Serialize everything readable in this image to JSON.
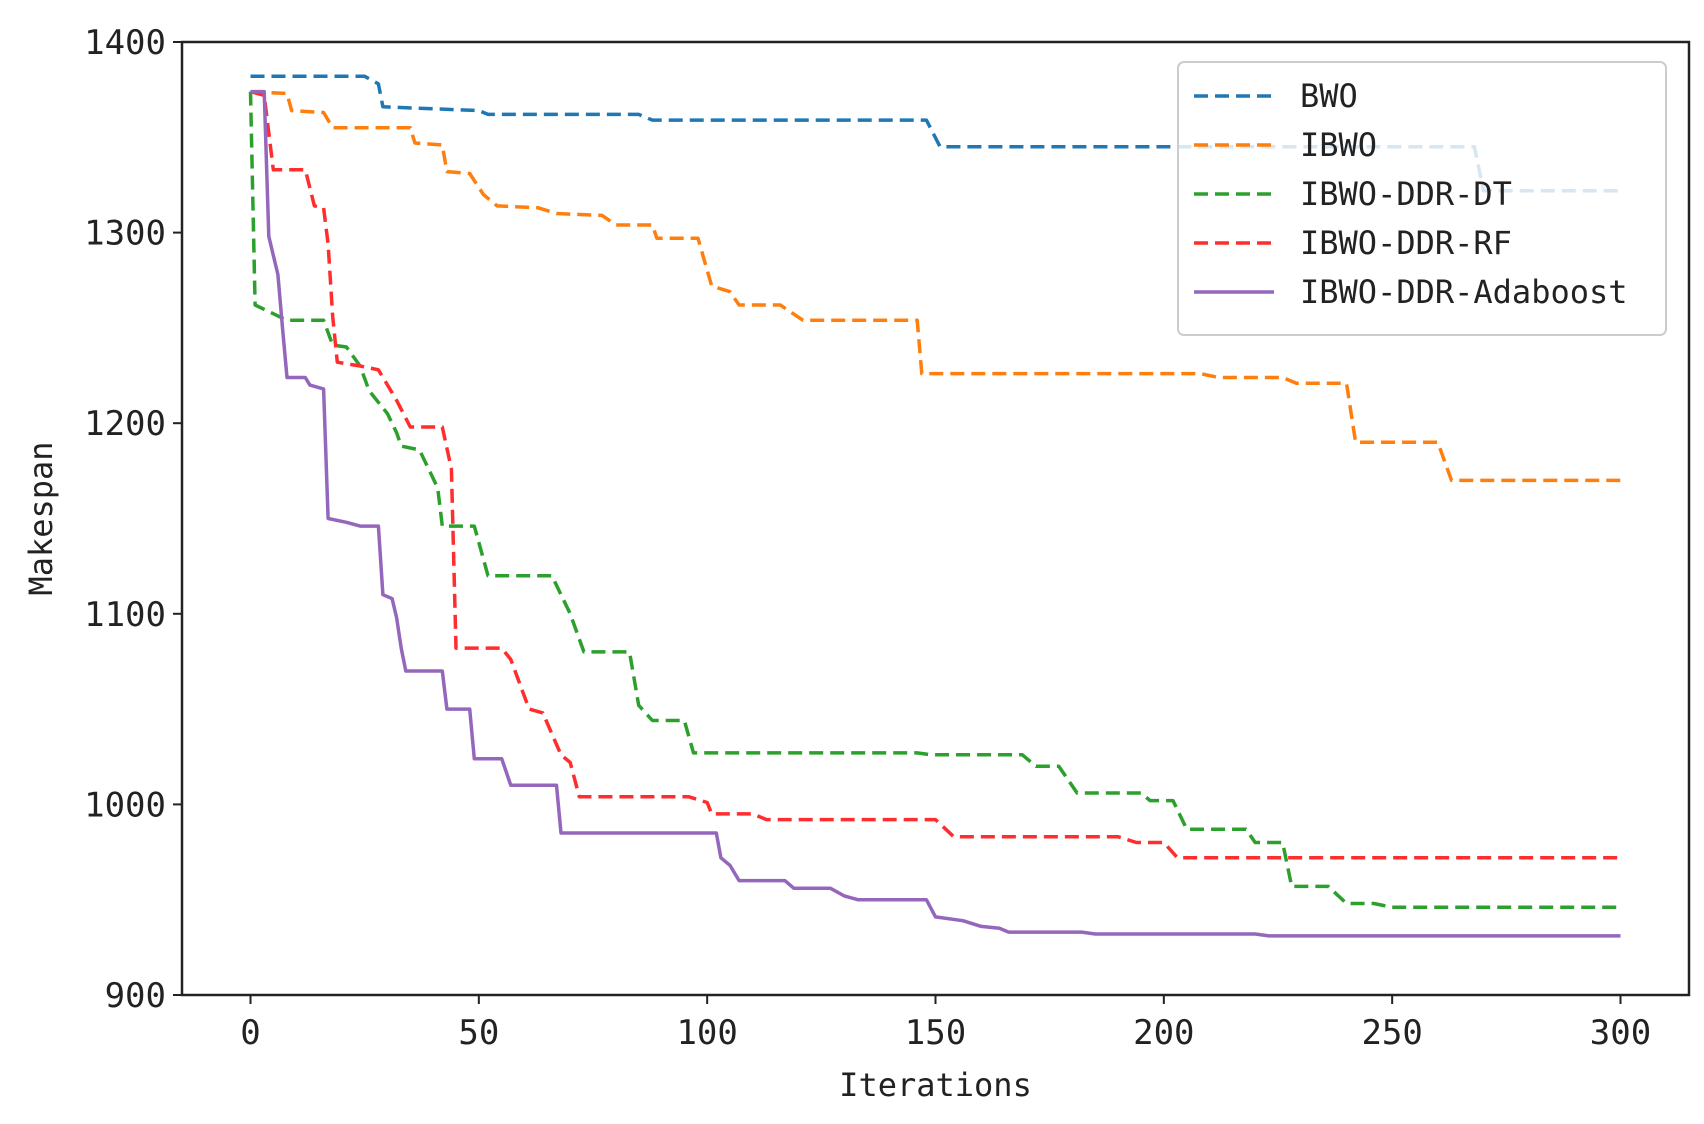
{
  "chart_data": {
    "type": "line",
    "title": "",
    "xlabel": "Iterations",
    "ylabel": "Makespan",
    "xlim": [
      -15,
      315
    ],
    "ylim": [
      900,
      1400
    ],
    "xticks": [
      0,
      50,
      100,
      150,
      200,
      250,
      300
    ],
    "yticks": [
      900,
      1000,
      1100,
      1200,
      1300,
      1400
    ],
    "grid": false,
    "legend_position": "top-right",
    "series": [
      {
        "name": "BWO",
        "color": "#1f77b4",
        "dash": "dashed",
        "points": [
          [
            0,
            1382
          ],
          [
            25,
            1382
          ],
          [
            28,
            1378
          ],
          [
            29,
            1366
          ],
          [
            50,
            1364
          ],
          [
            52,
            1362
          ],
          [
            85,
            1362
          ],
          [
            88,
            1359
          ],
          [
            148,
            1359
          ],
          [
            151,
            1345
          ],
          [
            268,
            1345
          ],
          [
            270,
            1322
          ],
          [
            300,
            1322
          ]
        ]
      },
      {
        "name": "IBWO",
        "color": "#ff7f0e",
        "dash": "dashed",
        "points": [
          [
            0,
            1374
          ],
          [
            8,
            1373
          ],
          [
            9,
            1364
          ],
          [
            16,
            1363
          ],
          [
            18,
            1355
          ],
          [
            35,
            1355
          ],
          [
            36,
            1347
          ],
          [
            42,
            1346
          ],
          [
            43,
            1332
          ],
          [
            48,
            1331
          ],
          [
            51,
            1320
          ],
          [
            54,
            1314
          ],
          [
            63,
            1313
          ],
          [
            67,
            1310
          ],
          [
            77,
            1309
          ],
          [
            80,
            1304
          ],
          [
            88,
            1304
          ],
          [
            89,
            1297
          ],
          [
            98,
            1297
          ],
          [
            101,
            1272
          ],
          [
            105,
            1269
          ],
          [
            107,
            1262
          ],
          [
            116,
            1262
          ],
          [
            121,
            1254
          ],
          [
            146,
            1254
          ],
          [
            147,
            1226
          ],
          [
            208,
            1226
          ],
          [
            212,
            1224
          ],
          [
            226,
            1224
          ],
          [
            229,
            1221
          ],
          [
            240,
            1221
          ],
          [
            242,
            1190
          ],
          [
            260,
            1190
          ],
          [
            263,
            1170
          ],
          [
            300,
            1170
          ]
        ]
      },
      {
        "name": "IBWO-DDR-DT",
        "color": "#2ca02c",
        "dash": "dashed",
        "points": [
          [
            0,
            1374
          ],
          [
            1,
            1262
          ],
          [
            8,
            1254
          ],
          [
            16,
            1254
          ],
          [
            18,
            1241
          ],
          [
            21,
            1240
          ],
          [
            24,
            1230
          ],
          [
            26,
            1217
          ],
          [
            30,
            1205
          ],
          [
            32,
            1195
          ],
          [
            33,
            1188
          ],
          [
            37,
            1186
          ],
          [
            41,
            1166
          ],
          [
            42,
            1146
          ],
          [
            49,
            1146
          ],
          [
            52,
            1120
          ],
          [
            66,
            1120
          ],
          [
            70,
            1100
          ],
          [
            73,
            1080
          ],
          [
            83,
            1080
          ],
          [
            85,
            1052
          ],
          [
            88,
            1044
          ],
          [
            95,
            1044
          ],
          [
            97,
            1027
          ],
          [
            146,
            1027
          ],
          [
            149,
            1026
          ],
          [
            169,
            1026
          ],
          [
            172,
            1020
          ],
          [
            177,
            1020
          ],
          [
            181,
            1006
          ],
          [
            195,
            1006
          ],
          [
            197,
            1002
          ],
          [
            202,
            1002
          ],
          [
            205,
            987
          ],
          [
            218,
            987
          ],
          [
            220,
            980
          ],
          [
            226,
            980
          ],
          [
            228,
            957
          ],
          [
            236,
            957
          ],
          [
            240,
            948
          ],
          [
            246,
            948
          ],
          [
            250,
            946
          ],
          [
            300,
            946
          ]
        ]
      },
      {
        "name": "IBWO-DDR-RF",
        "color": "#ff2d2d",
        "dash": "dashed",
        "points": [
          [
            0,
            1374
          ],
          [
            3,
            1372
          ],
          [
            5,
            1333
          ],
          [
            12,
            1333
          ],
          [
            14,
            1314
          ],
          [
            16,
            1313
          ],
          [
            17,
            1294
          ],
          [
            18,
            1256
          ],
          [
            19,
            1232
          ],
          [
            24,
            1230
          ],
          [
            28,
            1228
          ],
          [
            32,
            1212
          ],
          [
            35,
            1198
          ],
          [
            42,
            1198
          ],
          [
            44,
            1176
          ],
          [
            45,
            1082
          ],
          [
            55,
            1082
          ],
          [
            57,
            1076
          ],
          [
            61,
            1050
          ],
          [
            64,
            1048
          ],
          [
            68,
            1026
          ],
          [
            70,
            1022
          ],
          [
            72,
            1004
          ],
          [
            96,
            1004
          ],
          [
            100,
            1001
          ],
          [
            101,
            995
          ],
          [
            110,
            995
          ],
          [
            113,
            992
          ],
          [
            150,
            992
          ],
          [
            154,
            983
          ],
          [
            190,
            983
          ],
          [
            194,
            980
          ],
          [
            200,
            980
          ],
          [
            203,
            972
          ],
          [
            300,
            972
          ]
        ]
      },
      {
        "name": "IBWO-DDR-Adaboost",
        "color": "#9467bd",
        "dash": "solid",
        "points": [
          [
            0,
            1374
          ],
          [
            3,
            1374
          ],
          [
            4,
            1298
          ],
          [
            6,
            1278
          ],
          [
            7,
            1250
          ],
          [
            8,
            1224
          ],
          [
            12,
            1224
          ],
          [
            13,
            1220
          ],
          [
            16,
            1218
          ],
          [
            17,
            1150
          ],
          [
            21,
            1148
          ],
          [
            24,
            1146
          ],
          [
            28,
            1146
          ],
          [
            29,
            1110
          ],
          [
            31,
            1108
          ],
          [
            32,
            1098
          ],
          [
            33,
            1082
          ],
          [
            34,
            1070
          ],
          [
            42,
            1070
          ],
          [
            43,
            1050
          ],
          [
            48,
            1050
          ],
          [
            49,
            1024
          ],
          [
            55,
            1024
          ],
          [
            57,
            1010
          ],
          [
            67,
            1010
          ],
          [
            68,
            985
          ],
          [
            102,
            985
          ],
          [
            103,
            972
          ],
          [
            105,
            968
          ],
          [
            107,
            960
          ],
          [
            117,
            960
          ],
          [
            119,
            956
          ],
          [
            127,
            956
          ],
          [
            130,
            952
          ],
          [
            133,
            950
          ],
          [
            148,
            950
          ],
          [
            150,
            941
          ],
          [
            156,
            939
          ],
          [
            160,
            936
          ],
          [
            164,
            935
          ],
          [
            166,
            933
          ],
          [
            182,
            933
          ],
          [
            185,
            932
          ],
          [
            220,
            932
          ],
          [
            223,
            931
          ],
          [
            300,
            931
          ]
        ]
      }
    ]
  }
}
